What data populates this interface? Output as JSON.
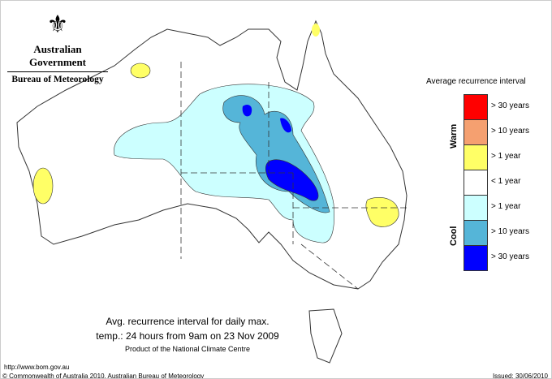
{
  "logo": {
    "agency": "Australian Government",
    "bureau": "Bureau of Meteorology"
  },
  "legend": {
    "title": "Average recurrence interval",
    "warm_label": "Warm",
    "cool_label": "Cool",
    "items": [
      {
        "label": "> 30 years",
        "color": "#ff0000"
      },
      {
        "label": "> 10 years",
        "color": "#f5a070"
      },
      {
        "label": "> 1 year",
        "color": "#ffff66"
      },
      {
        "label": "< 1 year",
        "color": "#ffffff"
      },
      {
        "label": "> 1 year",
        "color": "#ccffff"
      },
      {
        "label": "> 10 years",
        "color": "#55b5d8"
      },
      {
        "label": "> 30 years",
        "color": "#0000ff"
      }
    ]
  },
  "caption": {
    "line1": "Avg. recurrence interval for daily max.",
    "line2": "temp.: 24 hours from 9am on 23 Nov 2009",
    "line3": "Product of the National Climate Centre"
  },
  "footer": {
    "url": "http://www.bom.gov.au",
    "copyright": "© Commonwealth of Australia 2010, Australian Bureau of Meteorology",
    "issued": "Issued: 30/06/2010"
  }
}
